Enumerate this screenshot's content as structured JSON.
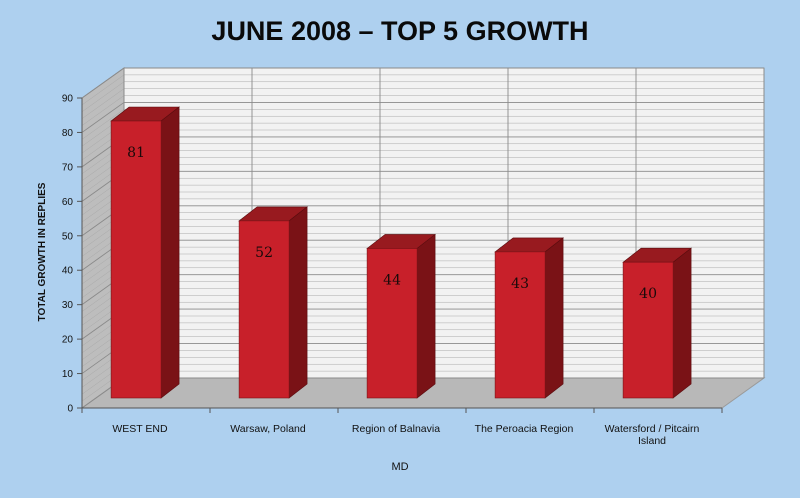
{
  "chart_data": {
    "type": "bar",
    "title": "JUNE 2008 – TOP 5 GROWTH",
    "xlabel": "MD",
    "ylabel": "TOTAL GROWTH IN REPLIES",
    "categories": [
      "WEST END",
      "Warsaw, Poland",
      "Region of Balnavia",
      "The Peroacia Region",
      "Watersford / Pitcairn Island"
    ],
    "values": [
      81,
      52,
      44,
      43,
      40
    ],
    "data_labels": [
      "81",
      "52",
      "44",
      "43",
      "40"
    ],
    "ylim": [
      0,
      90
    ],
    "y_ticks": [
      "0",
      "10",
      "20",
      "30",
      "40",
      "50",
      "60",
      "70",
      "80",
      "90"
    ],
    "grid": true,
    "style": "3d",
    "colors": {
      "background": "#aed0ef",
      "bar_front": "#c8202a",
      "bar_side": "#7a1216",
      "bar_top": "#981a1f",
      "wall": "#f2f2f2",
      "floor": "#b8b8b8",
      "gridline": "#a9a9a9"
    }
  }
}
